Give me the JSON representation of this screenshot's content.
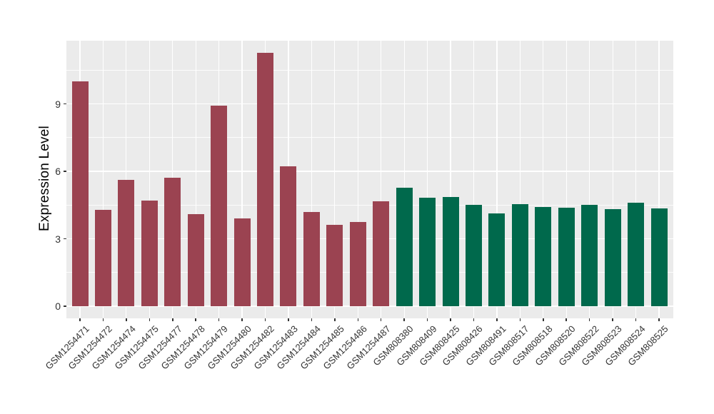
{
  "chart_data": {
    "type": "bar",
    "title": "",
    "xlabel": "",
    "ylabel": "Expression Level",
    "categories": [
      "GSM1254471",
      "GSM1254472",
      "GSM1254474",
      "GSM1254475",
      "GSM1254477",
      "GSM1254478",
      "GSM1254479",
      "GSM1254480",
      "GSM1254482",
      "GSM1254483",
      "GSM1254484",
      "GSM1254485",
      "GSM1254486",
      "GSM1254487",
      "GSM808380",
      "GSM808409",
      "GSM808425",
      "GSM808426",
      "GSM808491",
      "GSM808517",
      "GSM808518",
      "GSM808520",
      "GSM808522",
      "GSM808523",
      "GSM808524",
      "GSM808525"
    ],
    "values": [
      10.0,
      4.28,
      5.62,
      4.7,
      5.71,
      4.08,
      8.91,
      3.89,
      11.27,
      6.23,
      4.19,
      3.62,
      3.76,
      4.66,
      5.28,
      4.81,
      4.85,
      4.5,
      4.12,
      4.55,
      4.41,
      4.37,
      4.52,
      4.31,
      4.59,
      4.36
    ],
    "bar_groups": [
      0,
      0,
      0,
      0,
      0,
      0,
      0,
      0,
      0,
      0,
      0,
      0,
      0,
      0,
      1,
      1,
      1,
      1,
      1,
      1,
      1,
      1,
      1,
      1,
      1,
      1
    ],
    "group_colors": [
      "#9B4351",
      "#00694C"
    ],
    "yticks": [
      0,
      3,
      6,
      9
    ],
    "yticks_minor": [
      1.5,
      4.5,
      7.5,
      10.5
    ],
    "ylim": [
      -0.57,
      11.81
    ],
    "grid": true,
    "legend": "none",
    "panel_background": "#EBEBEB",
    "grid_color": "#FFFFFF",
    "tick_color": "#333333"
  }
}
